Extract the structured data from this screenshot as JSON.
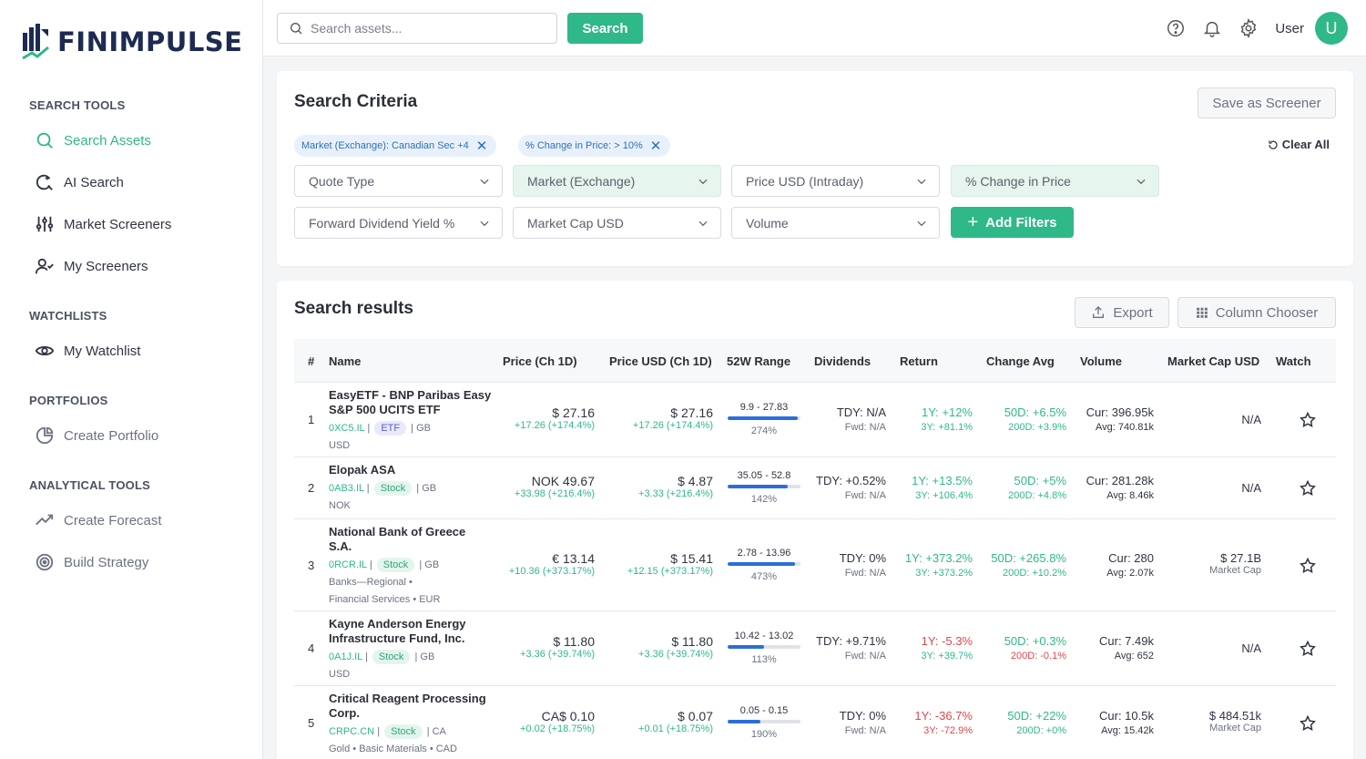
{
  "brand": {
    "name": "FINIMPULSE"
  },
  "sidebar": {
    "sections": [
      {
        "title": "SEARCH TOOLS"
      },
      {
        "title": "WATCHLISTS"
      },
      {
        "title": "PORTFOLIOS"
      },
      {
        "title": "ANALYTICAL TOOLS"
      }
    ],
    "items": [
      {
        "label": "Search Assets",
        "icon": "search-icon"
      },
      {
        "label": "AI Search",
        "icon": "ai-search-icon"
      },
      {
        "label": "Market Screeners",
        "icon": "sliders-icon"
      },
      {
        "label": "My Screeners",
        "icon": "user-check-icon"
      },
      {
        "label": "My Watchlist",
        "icon": "eye-icon"
      },
      {
        "label": "Create Portfolio",
        "icon": "pie-chart-icon"
      },
      {
        "label": "Create Forecast",
        "icon": "trend-icon"
      },
      {
        "label": "Build Strategy",
        "icon": "target-icon"
      }
    ]
  },
  "topbar": {
    "search_placeholder": "Search assets...",
    "search_button": "Search",
    "user_label": "User",
    "avatar_initial": "U"
  },
  "criteria": {
    "title": "Search Criteria",
    "save_button": "Save as Screener",
    "clear_all": "Clear All",
    "chips": [
      {
        "field": "Market (Exchange):",
        "value": "Canadian Sec +4"
      },
      {
        "field": "% Change in Price:",
        "value": "> 10%"
      }
    ],
    "dropdowns": [
      {
        "label": "Quote Type"
      },
      {
        "label": "Market (Exchange)"
      },
      {
        "label": "Price USD (Intraday)"
      },
      {
        "label": "% Change in Price"
      },
      {
        "label": "Forward Dividend Yield %"
      },
      {
        "label": "Market Cap USD"
      },
      {
        "label": "Volume"
      }
    ],
    "add_filters": "Add Filters"
  },
  "results": {
    "title": "Search results",
    "export_button": "Export",
    "column_chooser_button": "Column Chooser",
    "columns": [
      "#",
      "Name",
      "Price (Ch 1D)",
      "Price USD (Ch 1D)",
      "52W Range",
      "Dividends",
      "Return",
      "Change Avg",
      "Volume",
      "Market Cap USD",
      "Watch"
    ],
    "rows": [
      {
        "index": "1",
        "name_line1": "EasyETF - BNP Paribas Easy",
        "name_line2": "S&P 500 UCITS ETF",
        "ticker": "0XC5.IL",
        "sep1": "|",
        "type": "ETF",
        "country": "| GB",
        "extra1": "USD",
        "extra2": "",
        "price": "$ 27.16",
        "price_change": "+17.26 (+174.4%)",
        "price_usd": "$ 27.16",
        "price_usd_change": "+17.26 (+174.4%)",
        "range": "9.9 - 27.83",
        "range_pct": "274%",
        "range_fill": 0.96,
        "div_tdy": "TDY: N/A",
        "div_fwd": "Fwd: N/A",
        "ret_1y": "1Y: +12%",
        "ret_3y": "3Y: +81.1%",
        "chg_50d": "50D: +6.5%",
        "chg_200d": "200D: +3.9%",
        "vol_cur": "Cur: 396.95k",
        "vol_avg": "Avg: 740.81k",
        "mcap": "N/A",
        "mcap_sub": ""
      },
      {
        "index": "2",
        "name_line1": "Elopak ASA",
        "name_line2": "",
        "ticker": "0AB3.IL",
        "sep1": "|",
        "type": "Stock",
        "country": "| GB",
        "extra1": "NOK",
        "extra2": "",
        "price": "NOK 49.67",
        "price_change": "+33.98 (+216.4%)",
        "price_usd": "$ 4.87",
        "price_usd_change": "+3.33 (+216.4%)",
        "range": "35.05 - 52.8",
        "range_pct": "142%",
        "range_fill": 0.82,
        "div_tdy": "TDY: +0.52%",
        "div_fwd": "Fwd: N/A",
        "ret_1y": "1Y: +13.5%",
        "ret_3y": "3Y: +106.4%",
        "chg_50d": "50D: +5%",
        "chg_200d": "200D: +4.8%",
        "vol_cur": "Cur: 281.28k",
        "vol_avg": "Avg: 8.46k",
        "mcap": "N/A",
        "mcap_sub": ""
      },
      {
        "index": "3",
        "name_line1": "National Bank of Greece",
        "name_line2": "S.A.",
        "ticker": "0RCR.IL",
        "sep1": "|",
        "type": "Stock",
        "country": "| GB",
        "extra1": "Banks—Regional •",
        "extra2": "Financial Services • EUR",
        "price": "€ 13.14",
        "price_change": "+10.36 (+373.17%)",
        "price_usd": "$ 15.41",
        "price_usd_change": "+12.15 (+373.17%)",
        "range": "2.78 - 13.96",
        "range_pct": "473%",
        "range_fill": 0.93,
        "div_tdy": "TDY: 0%",
        "div_fwd": "Fwd: N/A",
        "ret_1y": "1Y: +373.2%",
        "ret_3y": "3Y: +373.2%",
        "chg_50d": "50D: +265.8%",
        "chg_200d": "200D: +10.2%",
        "vol_cur": "Cur: 280",
        "vol_avg": "Avg: 2.07k",
        "mcap": "$ 27.1B",
        "mcap_sub": "Market Cap"
      },
      {
        "index": "4",
        "name_line1": "Kayne Anderson Energy",
        "name_line2": "Infrastructure Fund, Inc.",
        "ticker": "0A1J.IL",
        "sep1": "|",
        "type": "Stock",
        "country": "| GB",
        "extra1": "USD",
        "extra2": "",
        "price": "$ 11.80",
        "price_change": "+3.36 (+39.74%)",
        "price_usd": "$ 11.80",
        "price_usd_change": "+3.36 (+39.74%)",
        "range": "10.42 - 13.02",
        "range_pct": "113%",
        "range_fill": 0.5,
        "div_tdy": "TDY: +9.71%",
        "div_fwd": "Fwd: N/A",
        "ret_1y": "1Y: -5.3%",
        "ret_3y": "3Y: +39.7%",
        "chg_50d": "50D: +0.3%",
        "chg_200d": "200D: -0.1%",
        "vol_cur": "Cur: 7.49k",
        "vol_avg": "Avg: 652",
        "mcap": "N/A",
        "mcap_sub": ""
      },
      {
        "index": "5",
        "name_line1": "Critical Reagent Processing",
        "name_line2": "Corp.",
        "ticker": "CRPC.CN",
        "sep1": "|",
        "type": "Stock",
        "country": "| CA",
        "extra1": "Gold • Basic Materials • CAD",
        "extra2": "",
        "price": "CA$ 0.10",
        "price_change": "+0.02 (+18.75%)",
        "price_usd": "$ 0.07",
        "price_usd_change": "+0.01 (+18.75%)",
        "range": "0.05 - 0.15",
        "range_pct": "190%",
        "range_fill": 0.45,
        "div_tdy": "TDY: 0%",
        "div_fwd": "Fwd: N/A",
        "ret_1y": "1Y: -36.7%",
        "ret_3y": "3Y: -72.9%",
        "chg_50d": "50D: +22%",
        "chg_200d": "200D: +0%",
        "vol_cur": "Cur: 10.5k",
        "vol_avg": "Avg: 15.42k",
        "mcap": "$ 484.51k",
        "mcap_sub": "Market Cap"
      }
    ]
  },
  "colors": {
    "accent": "#2fb888",
    "negative": "#e0474c",
    "range_fill": "#2b6ed9",
    "chip_bg": "#e8f1fb"
  }
}
